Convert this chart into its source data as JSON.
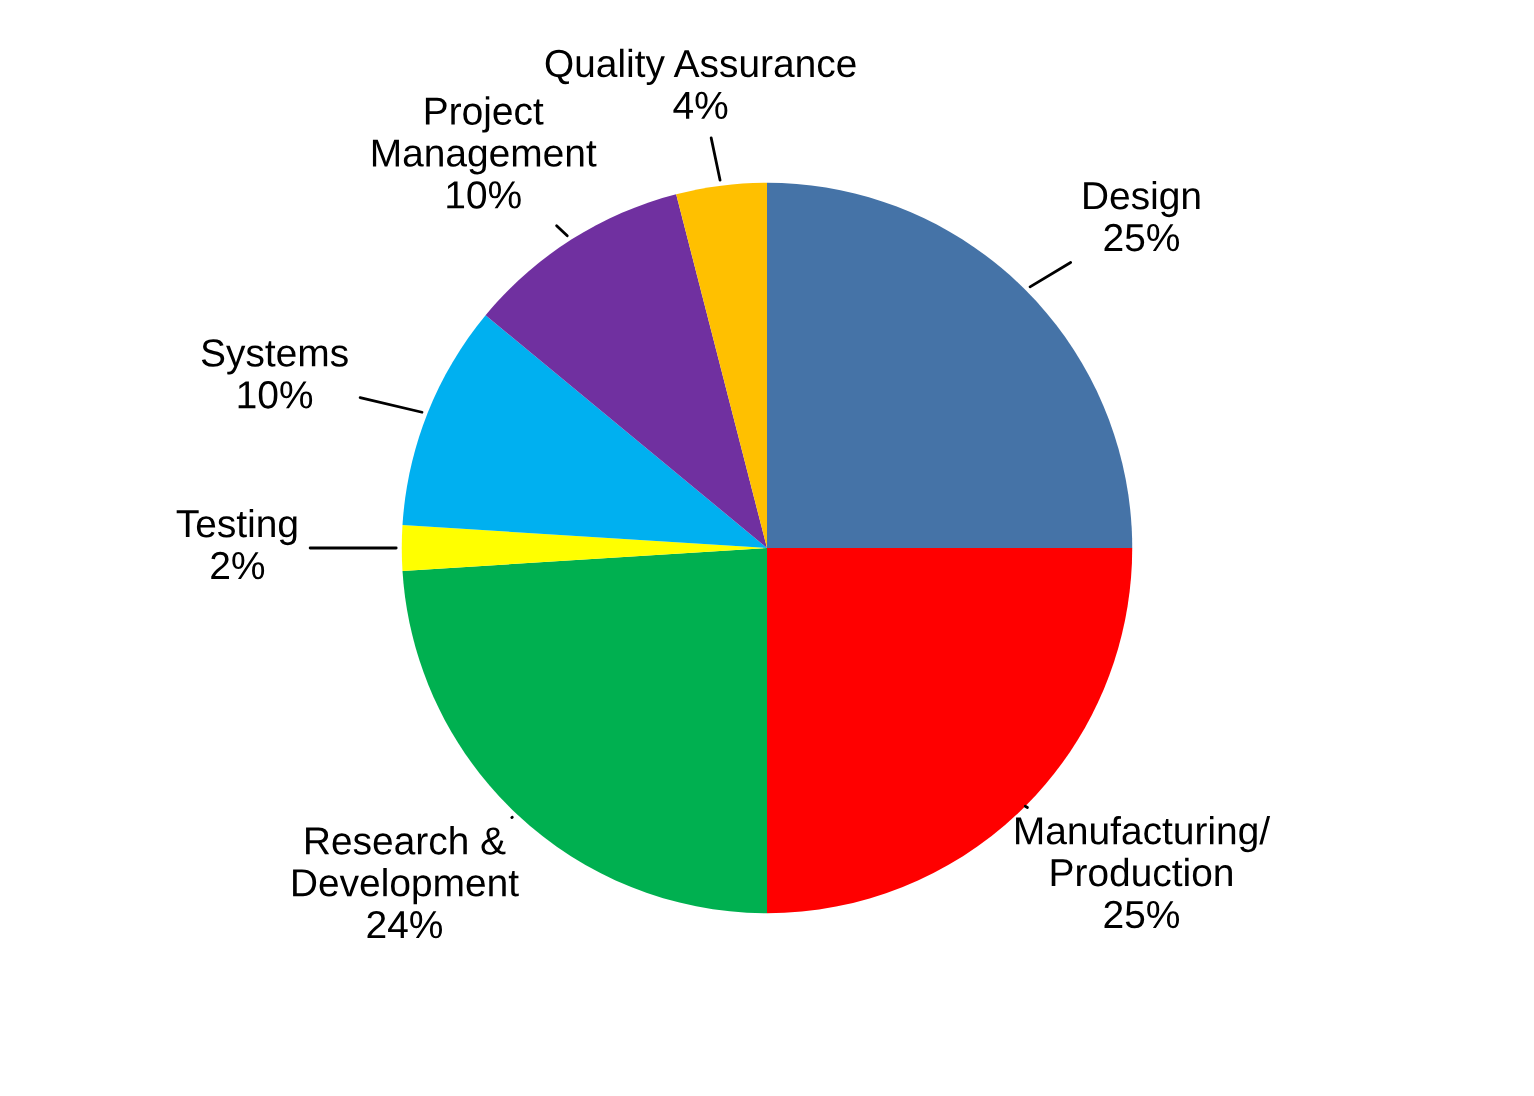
{
  "chart_data": {
    "type": "pie",
    "categories": [
      "Design",
      "Manufacturing/\nProduction",
      "Research &\nDevelopment",
      "Testing",
      "Systems",
      "Project\nManagement",
      "Quality Assurance"
    ],
    "values": [
      25,
      25,
      24,
      2,
      10,
      10,
      4
    ],
    "value_labels": [
      "25%",
      "25%",
      "24%",
      "2%",
      "10%",
      "10%",
      "4%"
    ],
    "colors": [
      "#4573a7",
      "#ff0000",
      "#00b050",
      "#ffff00",
      "#00b0f0",
      "#7030a0",
      "#ffc000"
    ],
    "legend": false
  }
}
